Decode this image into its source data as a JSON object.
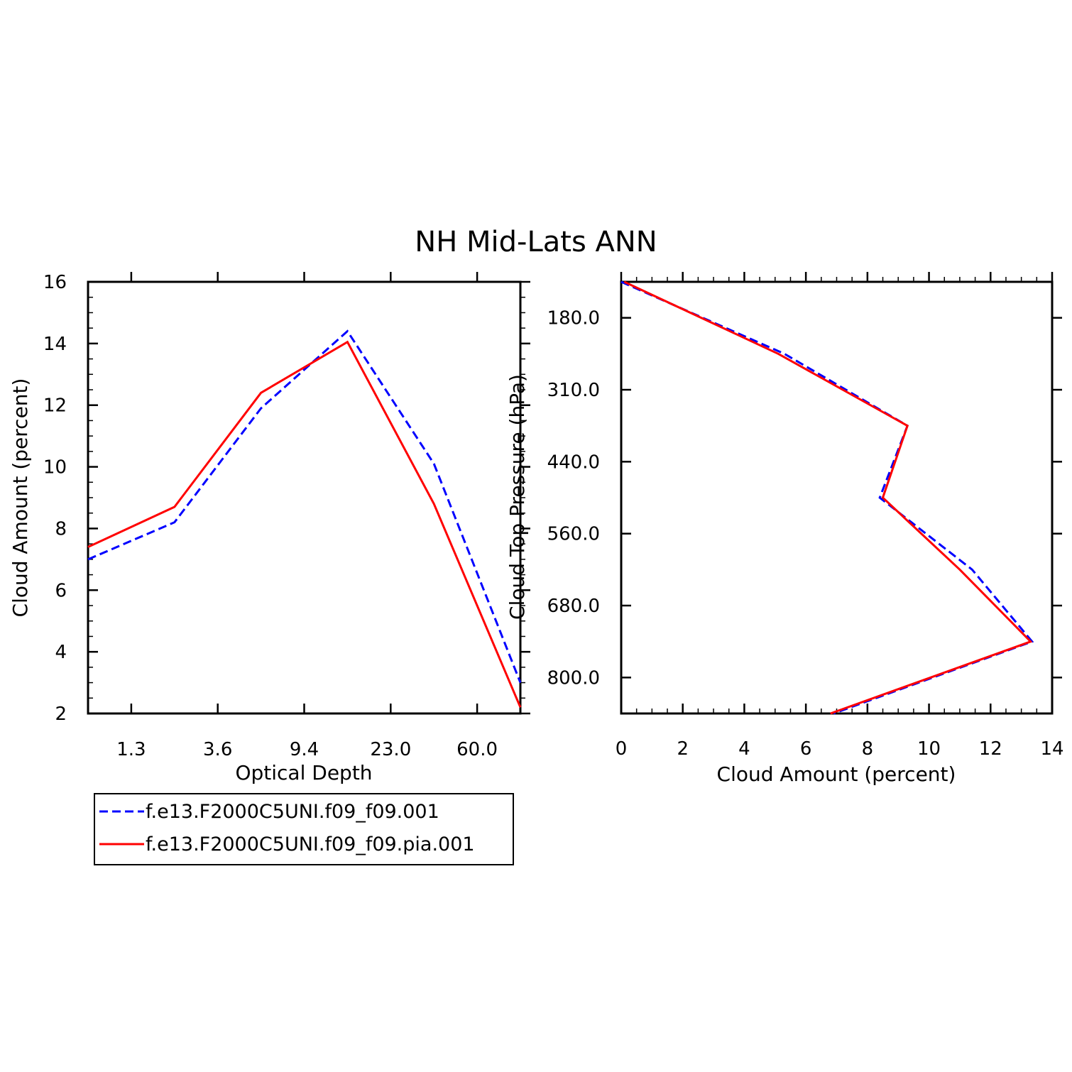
{
  "title": "NH Mid-Lats ANN",
  "colors": {
    "series1": "#0000ff",
    "series2": "#ff0000",
    "axis": "#000000"
  },
  "legend": {
    "placement": "bottom-left",
    "entries": [
      {
        "label": "f.e13.F2000C5UNI.f09_f09.001",
        "color": "#0000ff",
        "style": "dashed"
      },
      {
        "label": "f.e13.F2000C5UNI.f09_f09.pia.001",
        "color": "#ff0000",
        "style": "solid"
      }
    ]
  },
  "chart_data": [
    {
      "type": "line",
      "xlabel": "Optical Depth",
      "ylabel": "Cloud Amount (percent)",
      "x_tick_labels": [
        "1.3",
        "3.6",
        "9.4",
        "23.0",
        "60.0"
      ],
      "y_tick_labels": [
        "2",
        "4",
        "6",
        "8",
        "10",
        "12",
        "14",
        "16"
      ],
      "ylim": [
        2,
        16
      ],
      "grid": false,
      "series": [
        {
          "name": "f.e13.F2000C5UNI.f09_f09.001",
          "values": [
            7.0,
            8.2,
            11.9,
            14.4,
            10.1,
            3.0
          ]
        },
        {
          "name": "f.e13.F2000C5UNI.f09_f09.pia.001",
          "values": [
            7.4,
            8.7,
            12.4,
            14.05,
            8.8,
            2.2
          ]
        }
      ]
    },
    {
      "type": "line",
      "xlabel": "Cloud Amount (percent)",
      "ylabel": "Cloud Top Pressure (hPa)",
      "x_tick_labels": [
        "0",
        "2",
        "4",
        "6",
        "8",
        "10",
        "12",
        "14"
      ],
      "y_tick_labels": [
        "180.0",
        "310.0",
        "440.0",
        "560.0",
        "680.0",
        "800.0"
      ],
      "xlim": [
        0,
        14
      ],
      "grid": false,
      "series": [
        {
          "name": "f.e13.F2000C5UNI.f09_f09.001",
          "values": [
            0.0,
            5.3,
            9.3,
            8.4,
            11.4,
            13.35,
            6.9
          ]
        },
        {
          "name": "f.e13.F2000C5UNI.f09_f09.pia.001",
          "values": [
            0.1,
            5.1,
            9.3,
            8.5,
            11.0,
            13.3,
            6.8
          ]
        }
      ]
    }
  ]
}
